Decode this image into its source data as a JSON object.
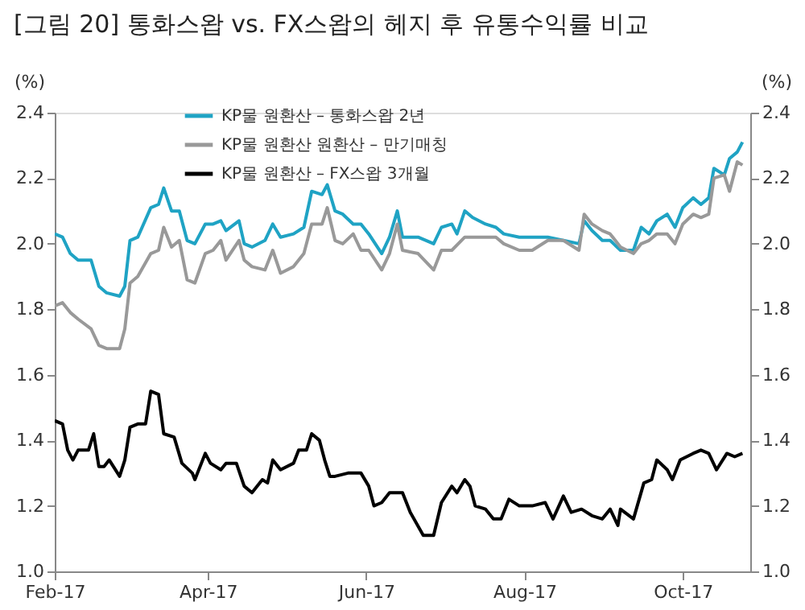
{
  "chart_data": {
    "type": "line",
    "title": "[그림 20] 통화스왑 vs. FX스왑의 헤지 후 유통수익률 비교",
    "ylabel": "(%)",
    "y2label": "(%)",
    "xlim": [
      "2017-02-01",
      "2017-10-27"
    ],
    "xticks": [
      {
        "value": "2017-02-01",
        "label": "Feb-17"
      },
      {
        "value": "2017-04-01",
        "label": "Apr-17"
      },
      {
        "value": "2017-06-01",
        "label": "Jun-17"
      },
      {
        "value": "2017-08-01",
        "label": "Aug-17"
      },
      {
        "value": "2017-10-01",
        "label": "Oct-17"
      }
    ],
    "ylim": [
      1.0,
      2.4
    ],
    "yticks": [
      {
        "value": 1.0,
        "label": "1.0"
      },
      {
        "value": 1.2,
        "label": "1.2"
      },
      {
        "value": 1.4,
        "label": "1.4"
      },
      {
        "value": 1.6,
        "label": "1.6"
      },
      {
        "value": 1.8,
        "label": "1.8"
      },
      {
        "value": 2.0,
        "label": "2.0"
      },
      {
        "value": 2.2,
        "label": "2.2"
      },
      {
        "value": 2.4,
        "label": "2.4"
      }
    ],
    "y2lim": [
      1.0,
      2.4
    ],
    "y2ticks": [
      {
        "value": 1.0,
        "label": "1.0"
      },
      {
        "value": 1.2,
        "label": "1.2"
      },
      {
        "value": 1.4,
        "label": "1.4"
      },
      {
        "value": 1.6,
        "label": "1.6"
      },
      {
        "value": 1.8,
        "label": "1.8"
      },
      {
        "value": 2.0,
        "label": "2.0"
      },
      {
        "value": 2.2,
        "label": "2.2"
      },
      {
        "value": 2.4,
        "label": "2.4"
      }
    ],
    "grid": false,
    "legend": "top",
    "marker": "none",
    "line_style": "solid",
    "series": [
      {
        "name": "KP물 원환산 – 통화스왑 2년",
        "color": "#1fa3c4",
        "x": [
          "2017-02-01",
          "2017-02-04",
          "2017-02-07",
          "2017-02-10",
          "2017-02-15",
          "2017-02-18",
          "2017-02-21",
          "2017-02-26",
          "2017-02-28",
          "2017-03-02",
          "2017-03-05",
          "2017-03-10",
          "2017-03-13",
          "2017-03-15",
          "2017-03-18",
          "2017-03-21",
          "2017-03-24",
          "2017-03-27",
          "2017-03-31",
          "2017-04-03",
          "2017-04-06",
          "2017-04-08",
          "2017-04-13",
          "2017-04-15",
          "2017-04-18",
          "2017-04-23",
          "2017-04-26",
          "2017-04-29",
          "2017-05-04",
          "2017-05-08",
          "2017-05-11",
          "2017-05-15",
          "2017-05-17",
          "2017-05-20",
          "2017-05-23",
          "2017-05-27",
          "2017-05-30",
          "2017-06-02",
          "2017-06-07",
          "2017-06-10",
          "2017-06-13",
          "2017-06-15",
          "2017-06-21",
          "2017-06-27",
          "2017-06-30",
          "2017-07-04",
          "2017-07-06",
          "2017-07-09",
          "2017-07-12",
          "2017-07-17",
          "2017-07-21",
          "2017-07-24",
          "2017-07-30",
          "2017-08-04",
          "2017-08-10",
          "2017-08-16",
          "2017-08-22",
          "2017-08-24",
          "2017-08-27",
          "2017-08-31",
          "2017-09-03",
          "2017-09-07",
          "2017-09-12",
          "2017-09-15",
          "2017-09-18",
          "2017-09-21",
          "2017-09-25",
          "2017-09-28",
          "2017-10-01",
          "2017-10-05",
          "2017-10-08",
          "2017-10-11",
          "2017-10-13",
          "2017-10-17",
          "2017-10-19",
          "2017-10-22",
          "2017-10-24"
        ],
        "values": [
          2.03,
          2.02,
          1.97,
          1.95,
          1.95,
          1.87,
          1.85,
          1.84,
          1.87,
          2.01,
          2.02,
          2.11,
          2.12,
          2.17,
          2.1,
          2.1,
          2.01,
          2.0,
          2.06,
          2.06,
          2.07,
          2.04,
          2.07,
          2.0,
          1.99,
          2.01,
          2.06,
          2.02,
          2.03,
          2.05,
          2.16,
          2.15,
          2.18,
          2.1,
          2.09,
          2.06,
          2.06,
          2.03,
          1.97,
          2.02,
          2.1,
          2.02,
          2.02,
          2.0,
          2.05,
          2.06,
          2.03,
          2.1,
          2.08,
          2.06,
          2.05,
          2.03,
          2.02,
          2.02,
          2.02,
          2.01,
          2.0,
          2.07,
          2.04,
          2.01,
          2.01,
          1.98,
          1.98,
          2.05,
          2.03,
          2.07,
          2.09,
          2.05,
          2.11,
          2.14,
          2.12,
          2.14,
          2.23,
          2.21,
          2.26,
          2.28,
          2.31
        ]
      },
      {
        "name": "KP물 원환산 원환산 – 만기매칭",
        "color": "#999999",
        "x": [
          "2017-02-01",
          "2017-02-04",
          "2017-02-07",
          "2017-02-10",
          "2017-02-15",
          "2017-02-18",
          "2017-02-21",
          "2017-02-26",
          "2017-02-28",
          "2017-03-02",
          "2017-03-05",
          "2017-03-10",
          "2017-03-13",
          "2017-03-15",
          "2017-03-18",
          "2017-03-21",
          "2017-03-24",
          "2017-03-27",
          "2017-03-31",
          "2017-04-03",
          "2017-04-06",
          "2017-04-08",
          "2017-04-13",
          "2017-04-15",
          "2017-04-18",
          "2017-04-23",
          "2017-04-26",
          "2017-04-29",
          "2017-05-04",
          "2017-05-08",
          "2017-05-11",
          "2017-05-15",
          "2017-05-17",
          "2017-05-20",
          "2017-05-23",
          "2017-05-27",
          "2017-05-30",
          "2017-06-02",
          "2017-06-07",
          "2017-06-10",
          "2017-06-13",
          "2017-06-15",
          "2017-06-21",
          "2017-06-27",
          "2017-06-30",
          "2017-07-04",
          "2017-07-09",
          "2017-07-12",
          "2017-07-17",
          "2017-07-21",
          "2017-07-24",
          "2017-07-30",
          "2017-08-04",
          "2017-08-10",
          "2017-08-16",
          "2017-08-22",
          "2017-08-24",
          "2017-08-27",
          "2017-08-31",
          "2017-09-03",
          "2017-09-07",
          "2017-09-12",
          "2017-09-15",
          "2017-09-18",
          "2017-09-21",
          "2017-09-25",
          "2017-09-28",
          "2017-10-01",
          "2017-10-05",
          "2017-10-08",
          "2017-10-11",
          "2017-10-13",
          "2017-10-17",
          "2017-10-19",
          "2017-10-22",
          "2017-10-24"
        ],
        "values": [
          1.81,
          1.82,
          1.79,
          1.77,
          1.74,
          1.69,
          1.68,
          1.68,
          1.74,
          1.88,
          1.9,
          1.97,
          1.98,
          2.05,
          1.99,
          2.01,
          1.89,
          1.88,
          1.97,
          1.98,
          2.01,
          1.95,
          2.01,
          1.95,
          1.93,
          1.92,
          1.98,
          1.91,
          1.93,
          1.97,
          2.06,
          2.06,
          2.11,
          2.01,
          2.0,
          2.03,
          1.98,
          1.98,
          1.92,
          1.97,
          2.06,
          1.98,
          1.97,
          1.92,
          1.98,
          1.98,
          2.02,
          2.02,
          2.02,
          2.02,
          2.0,
          1.98,
          1.98,
          2.01,
          2.01,
          1.98,
          2.09,
          2.06,
          2.04,
          2.03,
          1.99,
          1.97,
          2.0,
          2.01,
          2.03,
          2.03,
          2.0,
          2.06,
          2.09,
          2.08,
          2.09,
          2.2,
          2.21,
          2.16,
          2.25,
          2.24
        ]
      },
      {
        "name": "KP물 원환산 – FX스왑 3개월",
        "color": "#000000",
        "x": [
          "2017-02-01",
          "2017-02-04",
          "2017-02-06",
          "2017-02-08",
          "2017-02-10",
          "2017-02-14",
          "2017-02-16",
          "2017-02-18",
          "2017-02-20",
          "2017-02-22",
          "2017-02-26",
          "2017-02-28",
          "2017-03-02",
          "2017-03-05",
          "2017-03-08",
          "2017-03-10",
          "2017-03-13",
          "2017-03-15",
          "2017-03-19",
          "2017-03-22",
          "2017-03-26",
          "2017-03-27",
          "2017-03-31",
          "2017-04-02",
          "2017-04-06",
          "2017-04-08",
          "2017-04-12",
          "2017-04-15",
          "2017-04-18",
          "2017-04-22",
          "2017-04-24",
          "2017-04-26",
          "2017-04-29",
          "2017-05-04",
          "2017-05-06",
          "2017-05-09",
          "2017-05-11",
          "2017-05-14",
          "2017-05-16",
          "2017-05-18",
          "2017-05-20",
          "2017-05-25",
          "2017-05-30",
          "2017-06-02",
          "2017-06-04",
          "2017-06-07",
          "2017-06-10",
          "2017-06-12",
          "2017-06-15",
          "2017-06-18",
          "2017-06-23",
          "2017-06-27",
          "2017-06-30",
          "2017-07-04",
          "2017-07-06",
          "2017-07-09",
          "2017-07-11",
          "2017-07-13",
          "2017-07-17",
          "2017-07-20",
          "2017-07-23",
          "2017-07-26",
          "2017-07-30",
          "2017-08-04",
          "2017-08-09",
          "2017-08-12",
          "2017-08-16",
          "2017-08-19",
          "2017-08-23",
          "2017-08-27",
          "2017-08-31",
          "2017-09-03",
          "2017-09-06",
          "2017-09-07",
          "2017-09-12",
          "2017-09-16",
          "2017-09-19",
          "2017-09-21",
          "2017-09-25",
          "2017-09-27",
          "2017-09-30",
          "2017-10-05",
          "2017-10-08",
          "2017-10-11",
          "2017-10-14",
          "2017-10-18",
          "2017-10-21",
          "2017-10-24"
        ],
        "values": [
          1.46,
          1.45,
          1.37,
          1.34,
          1.37,
          1.37,
          1.42,
          1.32,
          1.32,
          1.34,
          1.29,
          1.34,
          1.44,
          1.45,
          1.45,
          1.55,
          1.54,
          1.42,
          1.41,
          1.33,
          1.3,
          1.28,
          1.36,
          1.33,
          1.31,
          1.33,
          1.33,
          1.26,
          1.24,
          1.28,
          1.27,
          1.34,
          1.31,
          1.33,
          1.37,
          1.37,
          1.42,
          1.4,
          1.34,
          1.29,
          1.29,
          1.3,
          1.3,
          1.26,
          1.2,
          1.21,
          1.24,
          1.24,
          1.24,
          1.18,
          1.11,
          1.11,
          1.21,
          1.26,
          1.24,
          1.28,
          1.26,
          1.2,
          1.19,
          1.16,
          1.16,
          1.22,
          1.2,
          1.2,
          1.21,
          1.16,
          1.23,
          1.18,
          1.19,
          1.17,
          1.16,
          1.19,
          1.14,
          1.19,
          1.16,
          1.27,
          1.28,
          1.34,
          1.31,
          1.28,
          1.34,
          1.36,
          1.37,
          1.36,
          1.31,
          1.36,
          1.35,
          1.36
        ]
      }
    ]
  }
}
